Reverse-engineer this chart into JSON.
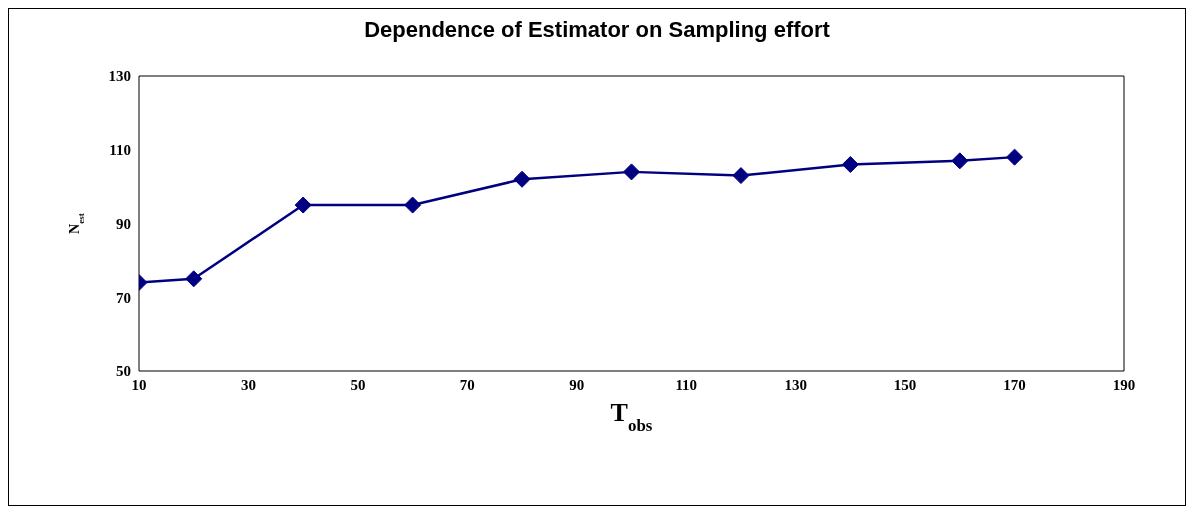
{
  "chart_data": {
    "type": "line",
    "title": "Dependence of Estimator on Sampling effort",
    "xlabel": "T$_{obs}$",
    "ylabel": "N$_{est}$",
    "x": [
      10,
      20,
      40,
      60,
      80,
      100,
      120,
      140,
      160,
      170
    ],
    "series": [
      {
        "color": "#000080",
        "values": [
          74,
          75,
          95,
          95,
          102,
          104,
          103,
          106,
          107,
          108
        ]
      }
    ],
    "xlim": [
      10,
      190
    ],
    "xticks": [
      10,
      30,
      50,
      70,
      90,
      110,
      130,
      150,
      170,
      190
    ],
    "ylim": [
      50,
      130
    ],
    "yticks": [
      50,
      70,
      90,
      110,
      130
    ],
    "grid": false,
    "legend": false,
    "marker": "diamond",
    "line_style": "solid"
  }
}
